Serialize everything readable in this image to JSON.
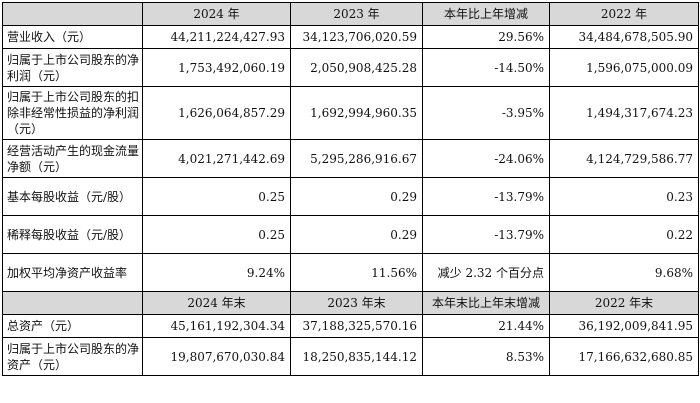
{
  "table": {
    "header1": [
      "",
      "2024 年",
      "2023 年",
      "本年比上年增减",
      "2022 年"
    ],
    "rows1": [
      {
        "label": "营业收入（元）",
        "v2024": "44,211,224,427.93",
        "v2023": "34,123,706,020.59",
        "change": "29.56%",
        "v2022": "34,484,678,505.90"
      },
      {
        "label": "归属于上市公司股东的净利润（元）",
        "v2024": "1,753,492,060.19",
        "v2023": "2,050,908,425.28",
        "change": "-14.50%",
        "v2022": "1,596,075,000.09"
      },
      {
        "label": "归属于上市公司股东的扣除非经常性损益的净利润（元）",
        "v2024": "1,626,064,857.29",
        "v2023": "1,692,994,960.35",
        "change": "-3.95%",
        "v2022": "1,494,317,674.23"
      },
      {
        "label": "经营活动产生的现金流量净额（元）",
        "v2024": "4,021,271,442.69",
        "v2023": "5,295,286,916.67",
        "change": "-24.06%",
        "v2022": "4,124,729,586.77"
      },
      {
        "label": "基本每股收益（元/股）",
        "v2024": "0.25",
        "v2023": "0.29",
        "change": "-13.79%",
        "v2022": "0.23"
      },
      {
        "label": "稀释每股收益（元/股）",
        "v2024": "0.25",
        "v2023": "0.29",
        "change": "-13.79%",
        "v2022": "0.22"
      },
      {
        "label": "加权平均净资产收益率",
        "v2024": "9.24%",
        "v2023": "11.56%",
        "change": "减少 2.32 个百分点",
        "v2022": "9.68%"
      }
    ],
    "header2": [
      "",
      "2024 年末",
      "2023 年末",
      "本年末比上年末增减",
      "2022 年末"
    ],
    "rows2": [
      {
        "label": "总资产（元）",
        "v2024": "45,161,192,304.34",
        "v2023": "37,188,325,570.16",
        "change": "21.44%",
        "v2022": "36,192,009,841.95"
      },
      {
        "label": "归属于上市公司股东的净资产（元）",
        "v2024": "19,807,670,030.84",
        "v2023": "18,250,835,144.12",
        "change": "8.53%",
        "v2022": "17,166,632,680.85"
      }
    ]
  }
}
